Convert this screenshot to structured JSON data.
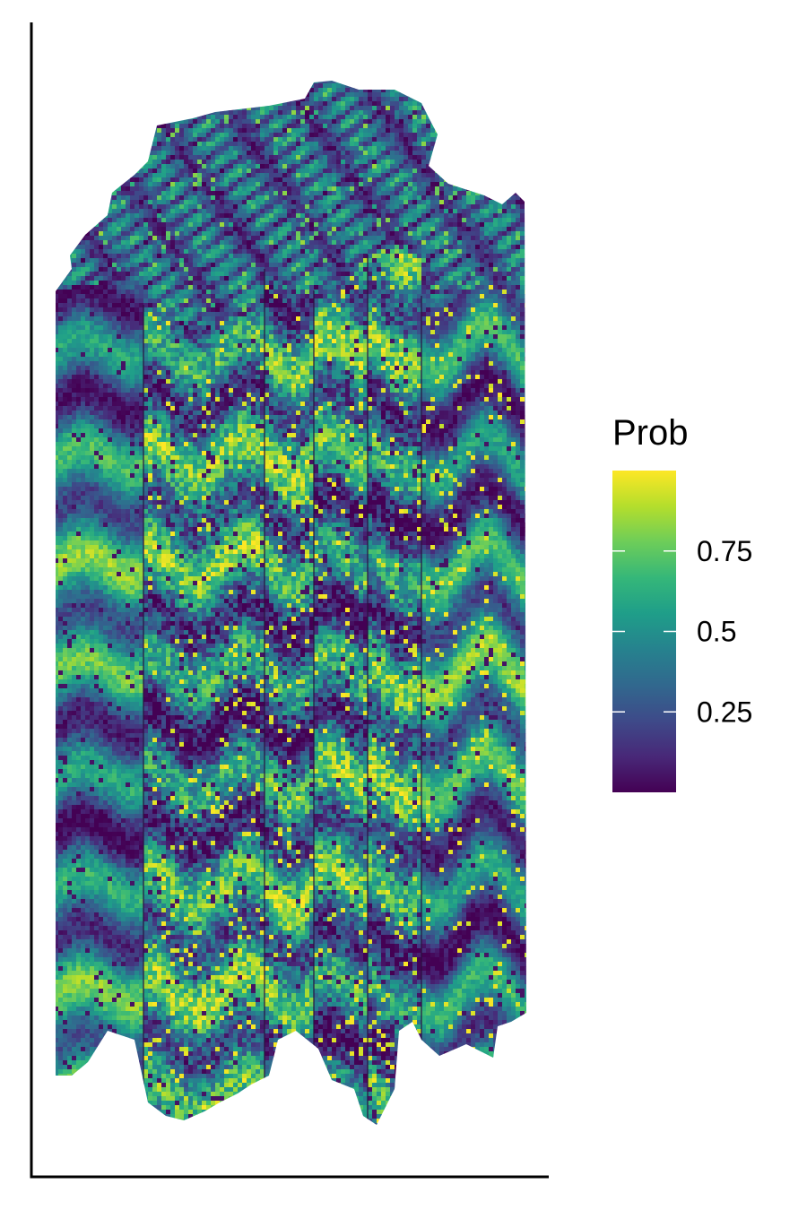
{
  "chart_data": {
    "type": "heatmap",
    "title": "",
    "xlabel": "",
    "ylabel": "",
    "fill_variable": "Prob",
    "colormap": "viridis",
    "color_range": [
      0,
      1
    ],
    "colors": [
      "#440154",
      "#482878",
      "#3E4A89",
      "#31688E",
      "#26828E",
      "#1F9E89",
      "#35B779",
      "#6DCD59",
      "#B4DE2C",
      "#FDE725"
    ],
    "legend": {
      "title": "Prob",
      "position": "right",
      "breaks": [
        0.25,
        0.5,
        0.75
      ],
      "labels": [
        "0.25",
        "0.5",
        "0.75"
      ]
    },
    "axes": {
      "x_line": true,
      "y_line": true,
      "ticks": false,
      "grid": false
    },
    "description_values": {
      "panels": 6,
      "pattern": "3D block diagram of stacked layers with folded wavy strata; top surface dissected with dark low-probability values"
    }
  }
}
